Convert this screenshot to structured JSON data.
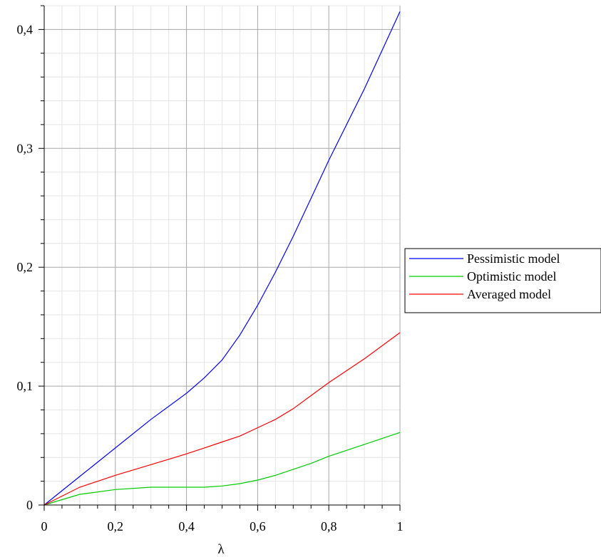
{
  "chart_data": {
    "type": "line",
    "title": "",
    "xlabel": "λ",
    "ylabel": "",
    "xlim": [
      0,
      1
    ],
    "ylim": [
      0,
      0.42
    ],
    "grid": true,
    "legend_position": "right",
    "x_ticks": [
      {
        "value": 0,
        "label": "0"
      },
      {
        "value": 0.2,
        "label": "0,2"
      },
      {
        "value": 0.4,
        "label": "0,4"
      },
      {
        "value": 0.6,
        "label": "0,6"
      },
      {
        "value": 0.8,
        "label": "0,8"
      },
      {
        "value": 1,
        "label": "1"
      }
    ],
    "y_ticks": [
      {
        "value": 0,
        "label": "0"
      },
      {
        "value": 0.1,
        "label": "0,1"
      },
      {
        "value": 0.2,
        "label": "0,2"
      },
      {
        "value": 0.3,
        "label": "0,3"
      },
      {
        "value": 0.4,
        "label": "0,4"
      }
    ],
    "x": [
      0,
      0.1,
      0.2,
      0.3,
      0.4,
      0.45,
      0.5,
      0.55,
      0.6,
      0.65,
      0.7,
      0.75,
      0.8,
      0.9,
      1.0
    ],
    "series": [
      {
        "name": "Pessimistic model",
        "color": "#0000ff",
        "values": [
          0,
          0.024,
          0.048,
          0.072,
          0.094,
          0.107,
          0.122,
          0.143,
          0.168,
          0.196,
          0.226,
          0.258,
          0.29,
          0.35,
          0.415
        ]
      },
      {
        "name": "Optimistic model",
        "color": "#00cc00",
        "values": [
          0,
          0.009,
          0.013,
          0.015,
          0.015,
          0.015,
          0.016,
          0.018,
          0.021,
          0.025,
          0.03,
          0.035,
          0.041,
          0.051,
          0.061
        ]
      },
      {
        "name": "Averaged model",
        "color": "#ff0000",
        "values": [
          0,
          0.015,
          0.025,
          0.034,
          0.043,
          0.048,
          0.053,
          0.058,
          0.065,
          0.072,
          0.081,
          0.092,
          0.103,
          0.123,
          0.145
        ]
      }
    ]
  }
}
